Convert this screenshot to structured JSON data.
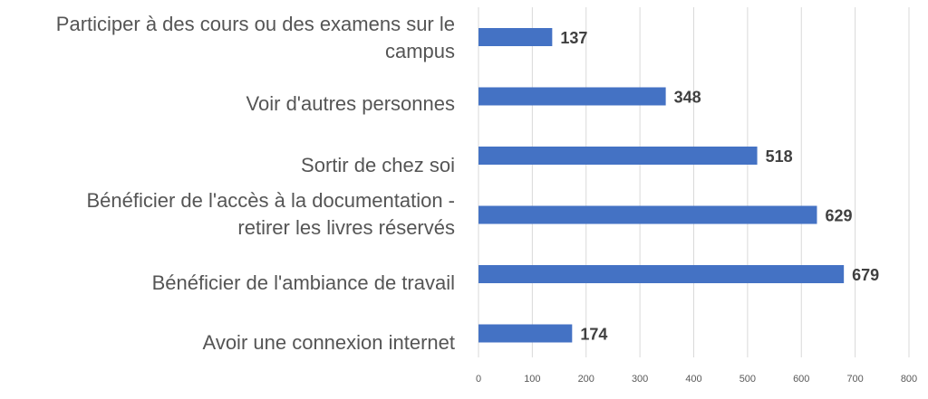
{
  "chart_data": {
    "type": "bar",
    "orientation": "horizontal",
    "categories": [
      "Participer à des cours ou des examens sur le campus",
      "Voir d'autres personnes",
      "Sortir de chez soi",
      "Bénéficier de l'accès à la documentation - retirer les livres réservés",
      "Bénéficier de l'ambiance de travail",
      "Avoir une connexion internet"
    ],
    "values": [
      137,
      348,
      518,
      629,
      679,
      174
    ],
    "value_labels": [
      "137",
      "348",
      "518",
      "629",
      "679",
      "174"
    ],
    "xlim": [
      0,
      800
    ],
    "xticks": [
      "0",
      "100",
      "200",
      "300",
      "400",
      "500",
      "600",
      "700",
      "800"
    ],
    "grid": "vertical",
    "bar_color": "#4472C4",
    "title": "",
    "xlabel": "",
    "ylabel": ""
  }
}
